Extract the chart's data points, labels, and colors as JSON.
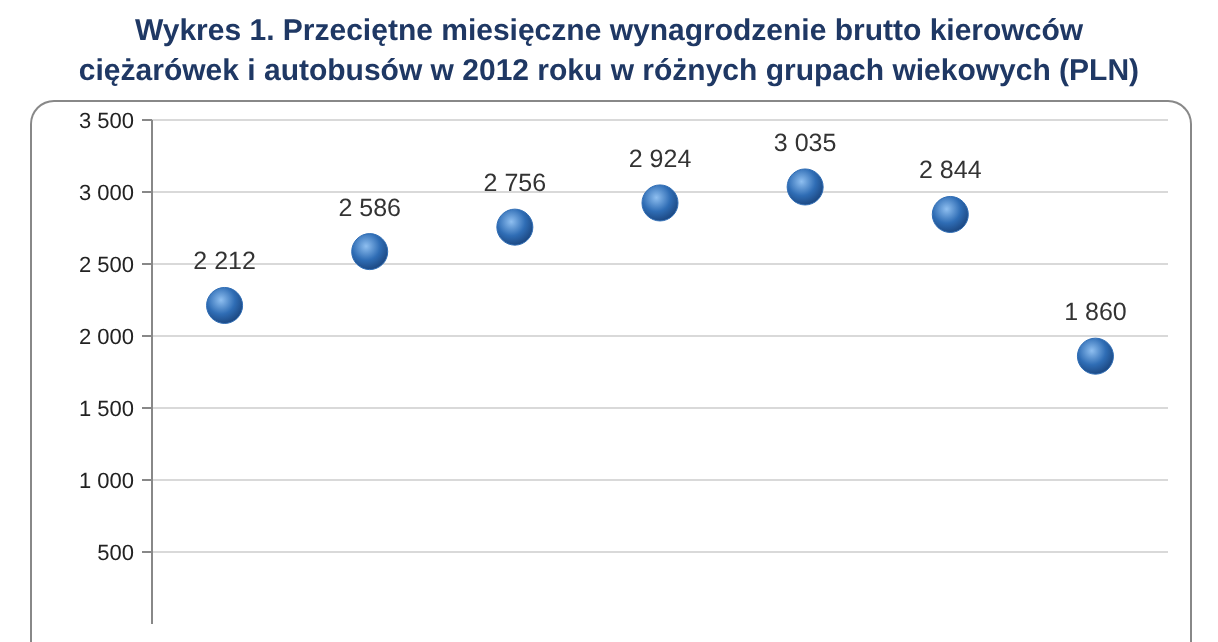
{
  "chart_data": {
    "type": "scatter",
    "title": "Wykres 1. Przeciętne miesięczne wynagrodzenie brutto kierowców ciężarówek i autobusów w 2012 roku w różnych grupach wiekowych (PLN)",
    "categories": [
      null,
      null,
      null,
      null,
      null,
      null,
      null
    ],
    "values": [
      2212,
      2586,
      2756,
      2924,
      3035,
      2844,
      1860
    ],
    "value_labels": [
      "2 212",
      "2 586",
      "2 756",
      "2 924",
      "3 035",
      "2 844",
      "1 860"
    ],
    "color": "#2f6db5",
    "marker": "circle",
    "grid": "y",
    "ylim": [
      0,
      3500
    ],
    "yticks": [
      {
        "value": 500,
        "label": "500"
      },
      {
        "value": 1000,
        "label": "1 000"
      },
      {
        "value": 1500,
        "label": "1 500"
      },
      {
        "value": 2000,
        "label": "2 000"
      },
      {
        "value": 2500,
        "label": "2 500"
      },
      {
        "value": 3000,
        "label": "3 000"
      },
      {
        "value": 3500,
        "label": "3 500"
      }
    ]
  }
}
